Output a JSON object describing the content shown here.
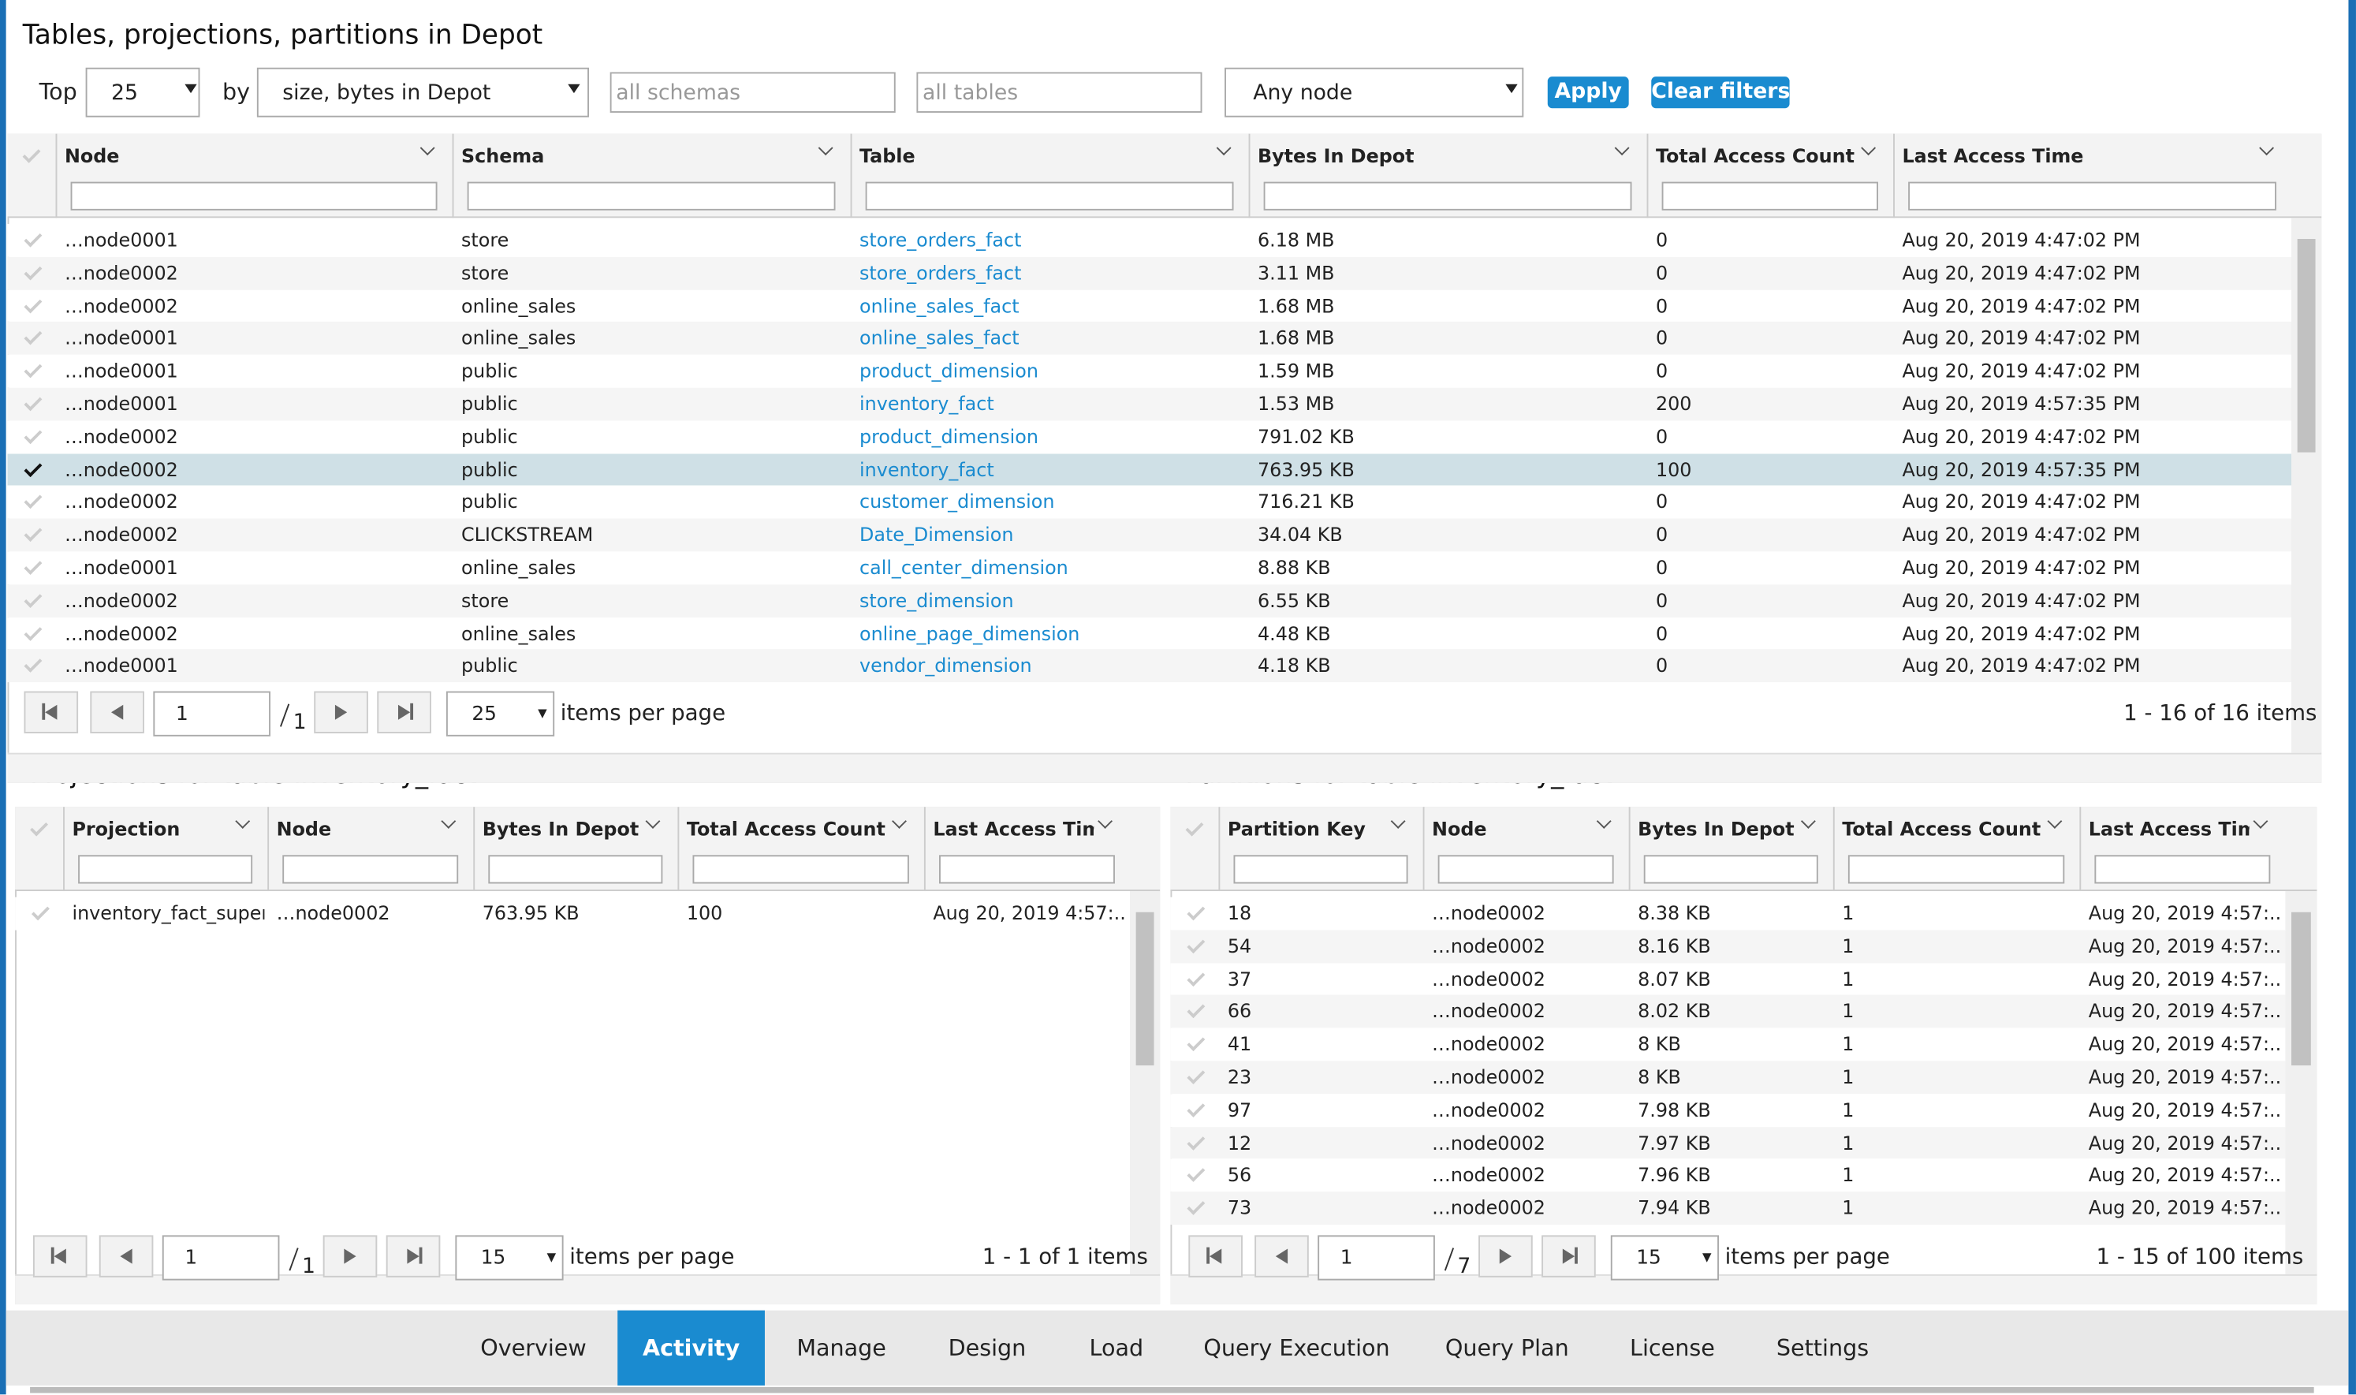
{
  "header": {
    "title": "Tables, projections, partitions in Depot"
  },
  "filters": {
    "top_label": "Top",
    "top_value": "25",
    "by_label": "by",
    "by_value": "size, bytes in Depot",
    "schemas_placeholder": "all schemas",
    "tables_placeholder": "all tables",
    "node_value": "Any node",
    "apply": "Apply",
    "clear": "Clear filters"
  },
  "main_table": {
    "columns": [
      "Node",
      "Schema",
      "Table",
      "Bytes In Depot",
      "Total Access Count",
      "Last Access Time"
    ],
    "selected_row": 7,
    "rows": [
      [
        "…node0001",
        "store",
        "store_orders_fact",
        "6.18 MB",
        "0",
        "Aug 20, 2019 4:47:02 PM"
      ],
      [
        "…node0002",
        "store",
        "store_orders_fact",
        "3.11 MB",
        "0",
        "Aug 20, 2019 4:47:02 PM"
      ],
      [
        "…node0002",
        "online_sales",
        "online_sales_fact",
        "1.68 MB",
        "0",
        "Aug 20, 2019 4:47:02 PM"
      ],
      [
        "…node0001",
        "online_sales",
        "online_sales_fact",
        "1.68 MB",
        "0",
        "Aug 20, 2019 4:47:02 PM"
      ],
      [
        "…node0001",
        "public",
        "product_dimension",
        "1.59 MB",
        "0",
        "Aug 20, 2019 4:47:02 PM"
      ],
      [
        "…node0001",
        "public",
        "inventory_fact",
        "1.53 MB",
        "200",
        "Aug 20, 2019 4:57:35 PM"
      ],
      [
        "…node0002",
        "public",
        "product_dimension",
        "791.02 KB",
        "0",
        "Aug 20, 2019 4:47:02 PM"
      ],
      [
        "…node0002",
        "public",
        "inventory_fact",
        "763.95 KB",
        "100",
        "Aug 20, 2019 4:57:35 PM"
      ],
      [
        "…node0002",
        "public",
        "customer_dimension",
        "716.21 KB",
        "0",
        "Aug 20, 2019 4:47:02 PM"
      ],
      [
        "…node0002",
        "CLICKSTREAM",
        "Date_Dimension",
        "34.04 KB",
        "0",
        "Aug 20, 2019 4:47:02 PM"
      ],
      [
        "…node0001",
        "online_sales",
        "call_center_dimension",
        "8.88 KB",
        "0",
        "Aug 20, 2019 4:47:02 PM"
      ],
      [
        "…node0002",
        "store",
        "store_dimension",
        "6.55 KB",
        "0",
        "Aug 20, 2019 4:47:02 PM"
      ],
      [
        "…node0002",
        "online_sales",
        "online_page_dimension",
        "4.48 KB",
        "0",
        "Aug 20, 2019 4:47:02 PM"
      ],
      [
        "…node0001",
        "public",
        "vendor_dimension",
        "4.18 KB",
        "0",
        "Aug 20, 2019 4:47:02 PM"
      ]
    ],
    "pager": {
      "page": "1",
      "total_pages": "1",
      "per_page": "25",
      "per_page_label": "items per page",
      "summary": "1 - 16 of 16 items"
    }
  },
  "projections": {
    "title": "Projections for table inventory_fact",
    "columns": [
      "Projection",
      "Node",
      "Bytes In Depot",
      "Total Access Count",
      "Last Access Time"
    ],
    "rows": [
      [
        "inventory_fact_super",
        "…node0002",
        "763.95 KB",
        "100",
        "Aug 20, 2019 4:57:..."
      ]
    ],
    "pager": {
      "page": "1",
      "total_pages": "1",
      "per_page": "15",
      "per_page_label": "items per page",
      "summary": "1 - 1 of 1 items"
    }
  },
  "partitions": {
    "title": "Partitions for table inventory_fact",
    "columns": [
      "Partition Key",
      "Node",
      "Bytes In Depot",
      "Total Access Count",
      "Last Access Time"
    ],
    "rows": [
      [
        "18",
        "…node0002",
        "8.38 KB",
        "1",
        "Aug 20, 2019 4:57:..."
      ],
      [
        "54",
        "…node0002",
        "8.16 KB",
        "1",
        "Aug 20, 2019 4:57:..."
      ],
      [
        "37",
        "…node0002",
        "8.07 KB",
        "1",
        "Aug 20, 2019 4:57:..."
      ],
      [
        "66",
        "…node0002",
        "8.02 KB",
        "1",
        "Aug 20, 2019 4:57:..."
      ],
      [
        "41",
        "…node0002",
        "8 KB",
        "1",
        "Aug 20, 2019 4:57:..."
      ],
      [
        "23",
        "…node0002",
        "8 KB",
        "1",
        "Aug 20, 2019 4:57:..."
      ],
      [
        "97",
        "…node0002",
        "7.98 KB",
        "1",
        "Aug 20, 2019 4:57:..."
      ],
      [
        "12",
        "…node0002",
        "7.97 KB",
        "1",
        "Aug 20, 2019 4:57:..."
      ],
      [
        "56",
        "…node0002",
        "7.96 KB",
        "1",
        "Aug 20, 2019 4:57:..."
      ],
      [
        "73",
        "…node0002",
        "7.94 KB",
        "1",
        "Aug 20, 2019 4:57:..."
      ]
    ],
    "pager": {
      "page": "1",
      "total_pages": "7",
      "per_page": "15",
      "per_page_label": "items per page",
      "summary": "1 - 15 of 100 items"
    }
  },
  "tabs": {
    "items": [
      "Overview",
      "Activity",
      "Manage",
      "Design",
      "Load",
      "Query Execution",
      "Query Plan",
      "License",
      "Settings"
    ],
    "active": 1
  }
}
